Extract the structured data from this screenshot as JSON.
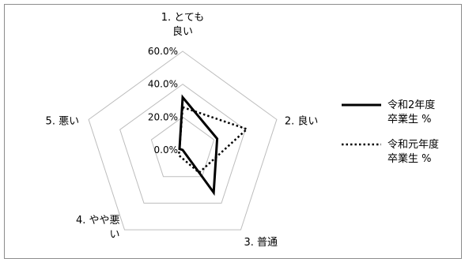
{
  "chart_data": {
    "type": "radar",
    "axes": [
      "1. とても\n良い",
      "2. 良い",
      "3. 普通",
      "4. やや悪\nい",
      "5. 悪い"
    ],
    "tick_labels": [
      "0.0%",
      "20.0%",
      "40.0%",
      "60.0%"
    ],
    "rmax": 60,
    "grid": true,
    "legend_position": "right",
    "series": [
      {
        "name": "令和2年度\n卒業生 %",
        "values": [
          32,
          22,
          32,
          0,
          2
        ],
        "color": "#000000",
        "style": "solid"
      },
      {
        "name": "令和元年度\n卒業生 %",
        "values": [
          26,
          41,
          17,
          4,
          2
        ],
        "color": "#000000",
        "style": "dotted"
      }
    ]
  }
}
